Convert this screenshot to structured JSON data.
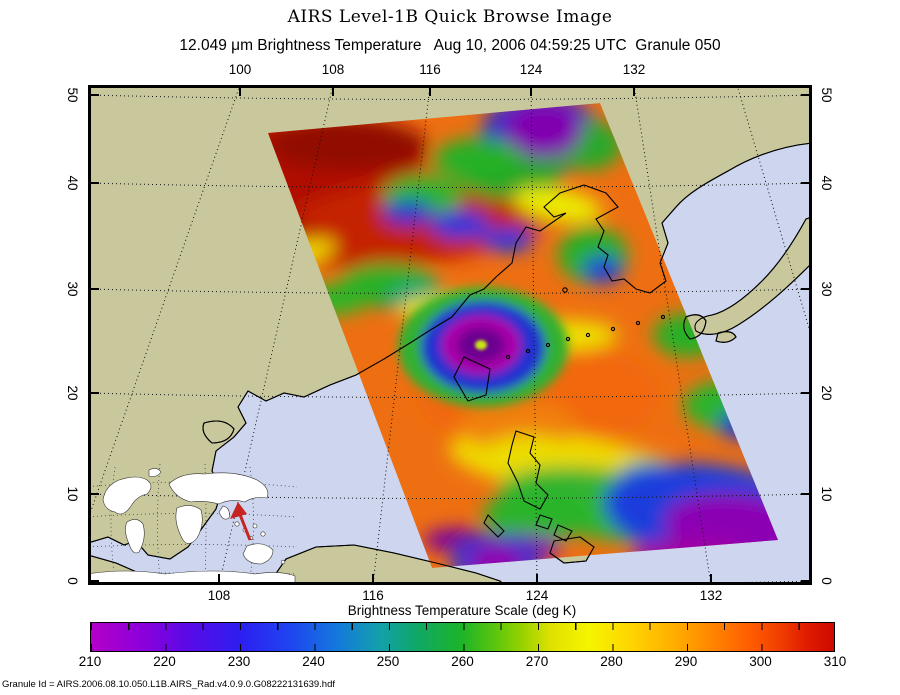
{
  "header": {
    "title": "AIRS Level-1B Quick Browse Image",
    "subtitle": "12.049 μm Brightness Temperature   Aug 10, 2006 04:59:25 UTC  Granule 050",
    "channel": "12.049 μm",
    "product": "Brightness Temperature",
    "datetime": "Aug 10, 2006 04:59:25 UTC",
    "granule": "Granule 050"
  },
  "map": {
    "top_axis_ticks": [
      "100",
      "108",
      "116",
      "124",
      "132"
    ],
    "bottom_axis_ticks": [
      "108",
      "116",
      "124",
      "132"
    ],
    "left_axis_ticks": [
      "50",
      "40",
      "30",
      "20",
      "10",
      "0"
    ],
    "right_axis_ticks": [
      "50",
      "40",
      "30",
      "20",
      "10",
      "0"
    ],
    "land_color": "#c9c89d",
    "ocean_color": "#cdd5ef",
    "coastline_color": "#000000",
    "inset_continent_color": "#ffffff",
    "locator_arrow_color": "#c62420"
  },
  "colorbar": {
    "title": "Brightness Temperature Scale (deg K)",
    "tick_labels": [
      "210",
      "220",
      "230",
      "240",
      "250",
      "260",
      "270",
      "280",
      "290",
      "300",
      "310"
    ],
    "min": 210,
    "max": 310,
    "units": "deg K",
    "scale_colors": [
      "#b400c8",
      "#5a0ae6",
      "#1e46f0",
      "#1478dc",
      "#14a0aa",
      "#1eb428",
      "#96d200",
      "#f5f500",
      "#ffaa00",
      "#ff5a00",
      "#cd0a00"
    ]
  },
  "footer": {
    "granule_id": "Granule Id = AIRS.2006.08.10.050.L1B.AIRS_Rad.v4.0.9.0.G08222131639.hdf"
  },
  "chart_data": {
    "type": "heatmap",
    "title": "AIRS Level-1B Quick Browse Image",
    "subtitle": "12.049 μm Brightness Temperature   Aug 10, 2006 04:59:25 UTC  Granule 050",
    "x_axis": {
      "ticks_top": [
        100,
        108,
        116,
        124,
        132
      ],
      "ticks_bottom": [
        108,
        116,
        124,
        132
      ]
    },
    "y_axis": {
      "ticks": [
        0,
        10,
        20,
        30,
        40,
        50
      ],
      "range": [
        0,
        50
      ]
    },
    "colorbar": {
      "label": "Brightness Temperature Scale (deg K)",
      "range": [
        210,
        310
      ],
      "ticks": [
        210,
        220,
        230,
        240,
        250,
        260,
        270,
        280,
        290,
        300,
        310
      ]
    },
    "legend_position": "bottom",
    "grid": true,
    "features": [
      "warm dark-red band at swath top (~305-310 K)",
      "cold vortex top-right near 45N 127E (~215-230 K)",
      "typhoon with warm eye near Taiwan 25N 122E (core ~210-225 K)",
      "cold cloud mass bottom-right near 10N 128-134E (~210-230 K)",
      "background ocean/land scene ~285-295 K (orange)"
    ]
  }
}
